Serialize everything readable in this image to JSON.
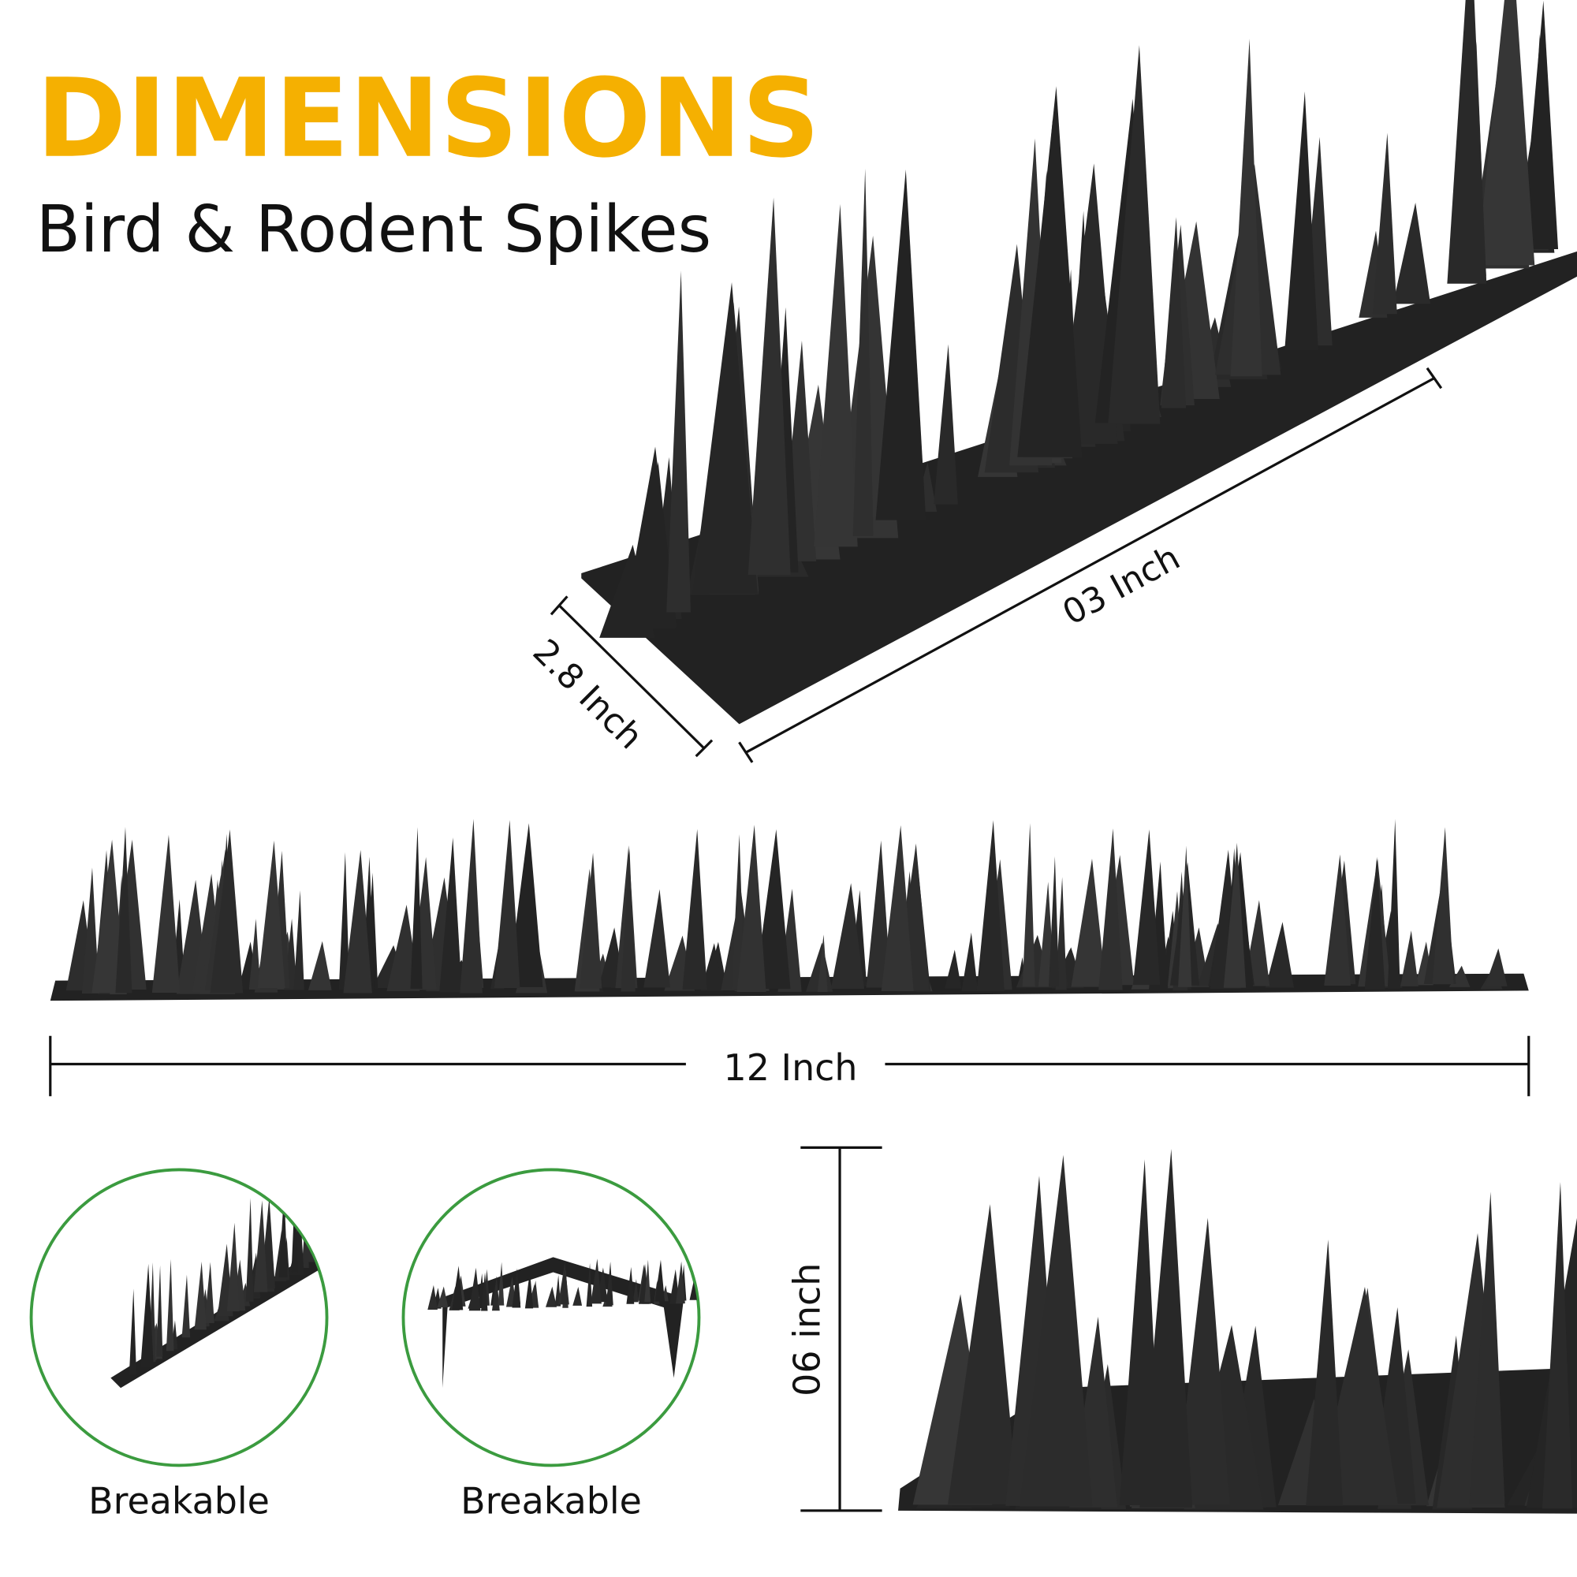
{
  "header": {
    "title": "DIMENSIONS",
    "subtitle": "Bird & Rodent Spikes"
  },
  "dimensions": {
    "length_diagonal": "03 Inch",
    "width": "2.8 Inch",
    "full_length": "12 Inch",
    "height": "06 inch"
  },
  "features": [
    {
      "label": "Breakable"
    },
    {
      "label": "Breakable"
    }
  ],
  "colors": {
    "title": "#F5B001",
    "text": "#111111",
    "spike": "#2b2b2b",
    "circle_border": "#3b9b3f"
  }
}
